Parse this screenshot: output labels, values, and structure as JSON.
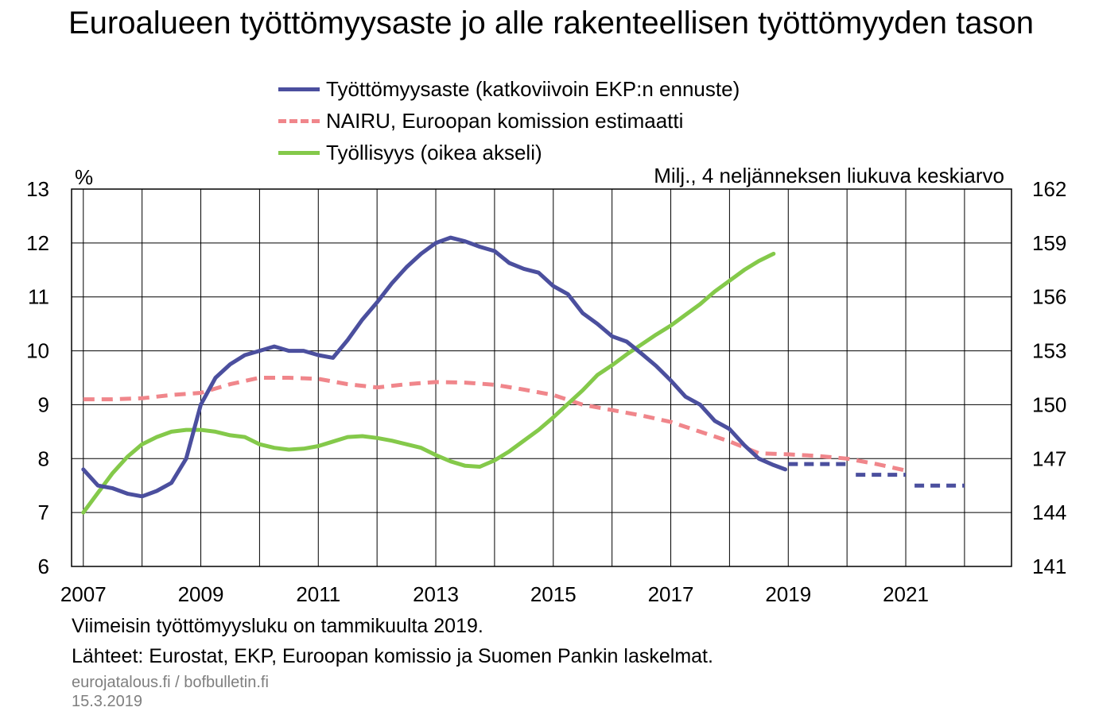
{
  "title": "Euroalueen työttömyysaste jo alle rakenteellisen työttömyyden tason",
  "left_unit": "%",
  "right_unit": "Milj., 4 neljänneksen liukuva keskiarvo",
  "footnote": "Viimeisin työttömyysluku on tammikuulta 2019.",
  "sources": "Lähteet: Eurostat, EKP, Euroopan komissio ja Suomen Pankin laskelmat.",
  "site": "eurojatalous.fi / bofbulletin.fi",
  "date": "15.3.2019",
  "colors": {
    "unemployment": "#4b4f9e",
    "nairu": "#f0868b",
    "employment": "#84c94a",
    "grid": "#000000"
  },
  "chart_data": {
    "type": "line",
    "x_ticks": [
      "2007",
      "2009",
      "2011",
      "2013",
      "2015",
      "2017",
      "2019",
      "2021"
    ],
    "x_tick_values": [
      2007,
      2009,
      2011,
      2013,
      2015,
      2017,
      2019,
      2021
    ],
    "xlim": [
      2006.8,
      2022.8
    ],
    "ylim_left": [
      6,
      13
    ],
    "yticks_left": [
      6,
      7,
      8,
      9,
      10,
      11,
      12,
      13
    ],
    "ylim_right": [
      141,
      162
    ],
    "yticks_right": [
      141,
      144,
      147,
      150,
      153,
      156,
      159,
      162
    ],
    "grid": true,
    "series": [
      {
        "name": "Työttömyysaste (katkoviivoin EKP:n ennuste)",
        "axis": "left",
        "style": "solid",
        "key": "unemployment",
        "points": [
          [
            2007.0,
            7.8
          ],
          [
            2007.25,
            7.5
          ],
          [
            2007.5,
            7.45
          ],
          [
            2007.75,
            7.35
          ],
          [
            2008.0,
            7.3
          ],
          [
            2008.25,
            7.4
          ],
          [
            2008.5,
            7.55
          ],
          [
            2008.75,
            8.0
          ],
          [
            2009.0,
            9.0
          ],
          [
            2009.25,
            9.5
          ],
          [
            2009.5,
            9.75
          ],
          [
            2009.75,
            9.92
          ],
          [
            2010.0,
            10.0
          ],
          [
            2010.25,
            10.08
          ],
          [
            2010.5,
            10.0
          ],
          [
            2010.75,
            10.0
          ],
          [
            2011.0,
            9.92
          ],
          [
            2011.25,
            9.87
          ],
          [
            2011.5,
            10.2
          ],
          [
            2011.75,
            10.58
          ],
          [
            2012.0,
            10.9
          ],
          [
            2012.25,
            11.25
          ],
          [
            2012.5,
            11.55
          ],
          [
            2012.75,
            11.8
          ],
          [
            2013.0,
            12.0
          ],
          [
            2013.25,
            12.1
          ],
          [
            2013.5,
            12.03
          ],
          [
            2013.75,
            11.93
          ],
          [
            2014.0,
            11.85
          ],
          [
            2014.25,
            11.63
          ],
          [
            2014.5,
            11.52
          ],
          [
            2014.75,
            11.45
          ],
          [
            2015.0,
            11.2
          ],
          [
            2015.25,
            11.05
          ],
          [
            2015.5,
            10.7
          ],
          [
            2015.75,
            10.5
          ],
          [
            2016.0,
            10.27
          ],
          [
            2016.25,
            10.17
          ],
          [
            2016.5,
            9.95
          ],
          [
            2016.75,
            9.72
          ],
          [
            2017.0,
            9.45
          ],
          [
            2017.25,
            9.15
          ],
          [
            2017.5,
            9.0
          ],
          [
            2017.75,
            8.7
          ],
          [
            2018.0,
            8.55
          ],
          [
            2018.25,
            8.25
          ],
          [
            2018.5,
            8.0
          ],
          [
            2018.75,
            7.88
          ],
          [
            2018.95,
            7.8
          ]
        ]
      },
      {
        "name": "Työttömyysaste, EKP:n ennuste",
        "axis": "left",
        "style": "forecast",
        "key": "unemployment",
        "segments": [
          [
            [
              2019.0,
              7.9
            ],
            [
              2020.0,
              7.9
            ]
          ],
          [
            [
              2020.15,
              7.7
            ],
            [
              2021.0,
              7.7
            ]
          ],
          [
            [
              2021.15,
              7.5
            ],
            [
              2022.0,
              7.5
            ]
          ]
        ]
      },
      {
        "name": "NAIRU, Euroopan komission estimaatti",
        "axis": "left",
        "style": "dashed",
        "key": "nairu",
        "points": [
          [
            2007.0,
            9.1
          ],
          [
            2007.5,
            9.1
          ],
          [
            2008.0,
            9.12
          ],
          [
            2008.5,
            9.18
          ],
          [
            2009.0,
            9.22
          ],
          [
            2009.5,
            9.38
          ],
          [
            2010.0,
            9.5
          ],
          [
            2010.5,
            9.5
          ],
          [
            2011.0,
            9.48
          ],
          [
            2011.5,
            9.38
          ],
          [
            2012.0,
            9.32
          ],
          [
            2012.5,
            9.38
          ],
          [
            2013.0,
            9.42
          ],
          [
            2013.5,
            9.41
          ],
          [
            2014.0,
            9.37
          ],
          [
            2014.5,
            9.28
          ],
          [
            2015.0,
            9.18
          ],
          [
            2015.5,
            9.0
          ],
          [
            2016.0,
            8.9
          ],
          [
            2016.5,
            8.8
          ],
          [
            2017.0,
            8.68
          ],
          [
            2017.5,
            8.5
          ],
          [
            2018.0,
            8.32
          ],
          [
            2018.5,
            8.1
          ],
          [
            2019.0,
            8.08
          ],
          [
            2019.5,
            8.05
          ],
          [
            2020.0,
            8.0
          ],
          [
            2020.5,
            7.9
          ],
          [
            2021.0,
            7.78
          ]
        ]
      },
      {
        "name": "Työllisyys (oikea akseli)",
        "axis": "right",
        "style": "solid",
        "key": "employment",
        "points": [
          [
            2007.0,
            144.0
          ],
          [
            2007.25,
            145.1
          ],
          [
            2007.5,
            146.2
          ],
          [
            2007.75,
            147.1
          ],
          [
            2008.0,
            147.8
          ],
          [
            2008.25,
            148.2
          ],
          [
            2008.5,
            148.5
          ],
          [
            2008.75,
            148.6
          ],
          [
            2009.0,
            148.6
          ],
          [
            2009.25,
            148.5
          ],
          [
            2009.5,
            148.3
          ],
          [
            2009.75,
            148.2
          ],
          [
            2010.0,
            147.8
          ],
          [
            2010.25,
            147.6
          ],
          [
            2010.5,
            147.5
          ],
          [
            2010.75,
            147.55
          ],
          [
            2011.0,
            147.7
          ],
          [
            2011.25,
            147.95
          ],
          [
            2011.5,
            148.2
          ],
          [
            2011.75,
            148.25
          ],
          [
            2012.0,
            148.15
          ],
          [
            2012.25,
            148.0
          ],
          [
            2012.5,
            147.8
          ],
          [
            2012.75,
            147.6
          ],
          [
            2013.0,
            147.2
          ],
          [
            2013.25,
            146.85
          ],
          [
            2013.5,
            146.6
          ],
          [
            2013.75,
            146.55
          ],
          [
            2014.0,
            146.9
          ],
          [
            2014.25,
            147.4
          ],
          [
            2014.5,
            148.0
          ],
          [
            2014.75,
            148.6
          ],
          [
            2015.0,
            149.3
          ],
          [
            2015.25,
            150.05
          ],
          [
            2015.5,
            150.8
          ],
          [
            2015.75,
            151.65
          ],
          [
            2016.0,
            152.2
          ],
          [
            2016.25,
            152.8
          ],
          [
            2016.5,
            153.35
          ],
          [
            2016.75,
            153.9
          ],
          [
            2017.0,
            154.4
          ],
          [
            2017.25,
            155.0
          ],
          [
            2017.5,
            155.6
          ],
          [
            2017.75,
            156.3
          ],
          [
            2018.0,
            156.9
          ],
          [
            2018.25,
            157.5
          ],
          [
            2018.5,
            158.0
          ],
          [
            2018.75,
            158.4
          ]
        ]
      }
    ],
    "legend_entries": [
      "Työttömyysaste (katkoviivoin EKP:n ennuste)",
      "NAIRU, Euroopan komission estimaatti",
      "Työllisyys (oikea akseli)"
    ]
  }
}
